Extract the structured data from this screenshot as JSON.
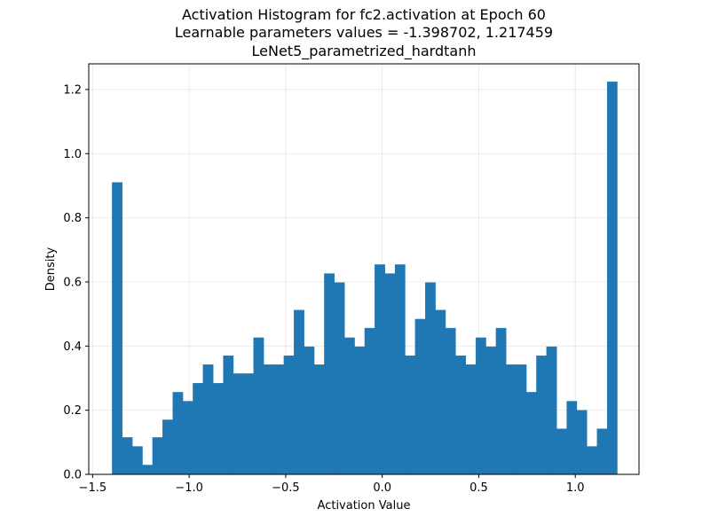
{
  "chart_data": {
    "type": "bar",
    "title_lines": [
      "Activation Histogram for fc2.activation at Epoch 60",
      "Learnable parameters values = -1.398702, 1.217459",
      "LeNet5_parametrized_hardtanh"
    ],
    "xlabel": "Activation Value",
    "ylabel": "Density",
    "xlim": [
      -1.52,
      1.33
    ],
    "ylim": [
      0,
      1.28
    ],
    "xticks": [
      -1.5,
      -1.0,
      -0.5,
      0.0,
      0.5,
      1.0
    ],
    "xtick_labels": [
      "−1.5",
      "−1.0",
      "−0.5",
      "0.0",
      "0.5",
      "1.0"
    ],
    "yticks": [
      0.0,
      0.2,
      0.4,
      0.6,
      0.8,
      1.0,
      1.2
    ],
    "ytick_labels": [
      "0.0",
      "0.2",
      "0.4",
      "0.6",
      "0.8",
      "1.0",
      "1.2"
    ],
    "grid": true,
    "bar_color": "#1f77b4",
    "bin_edges_range": [
      -1.398702,
      1.217459
    ],
    "values": [
      0.91,
      0.115,
      0.087,
      0.029,
      0.115,
      0.17,
      0.256,
      0.228,
      0.284,
      0.342,
      0.284,
      0.37,
      0.314,
      0.314,
      0.426,
      0.342,
      0.342,
      0.37,
      0.512,
      0.398,
      0.342,
      0.626,
      0.598,
      0.426,
      0.398,
      0.456,
      0.654,
      0.626,
      0.654,
      0.37,
      0.484,
      0.598,
      0.512,
      0.456,
      0.37,
      0.342,
      0.426,
      0.398,
      0.456,
      0.342,
      0.342,
      0.256,
      0.37,
      0.398,
      0.142,
      0.228,
      0.2,
      0.087,
      0.142,
      1.224
    ]
  }
}
